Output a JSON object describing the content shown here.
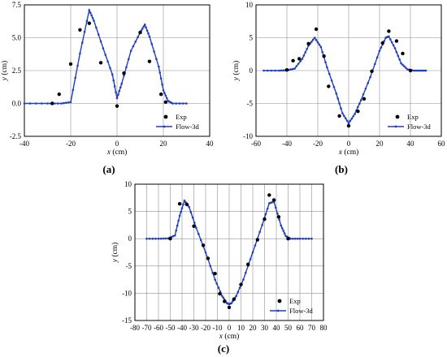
{
  "colors": {
    "model": "#1f3fbf",
    "exp": "#000000",
    "grid": "#8f8f8f",
    "axis": "#000000"
  },
  "chart_data": [
    {
      "type": "line",
      "panel_label": "(a)",
      "xlabel_var": "x",
      "xlabel_unit": " (cm)",
      "ylabel_var": "y",
      "ylabel_unit": " (cm)",
      "xlim": [
        -40,
        40
      ],
      "ylim": [
        -2.5,
        7.5
      ],
      "xticks": [
        -40,
        -20,
        0,
        20,
        40
      ],
      "yticks": [
        -2.5,
        0.0,
        2.5,
        5.0,
        7.5
      ],
      "ytick_labels": [
        "-2.5",
        "0.0",
        "2.5",
        "5.0",
        "7.5"
      ],
      "grid": true,
      "legend": {
        "position": "bottom-right",
        "entries": [
          "Exp",
          "Flow-3d"
        ]
      },
      "series": [
        {
          "name": "Exp",
          "style": "scatter",
          "x": [
            -28,
            -25,
            -20,
            -16,
            -12,
            -7,
            0,
            3,
            10,
            14,
            19,
            21
          ],
          "y": [
            0.0,
            0.7,
            3.0,
            5.6,
            6.1,
            3.1,
            -0.2,
            2.3,
            5.4,
            3.2,
            0.7,
            0.1
          ]
        },
        {
          "name": "Flow-3d",
          "style": "line",
          "x": [
            -40,
            -30,
            -24,
            -20,
            -16,
            -12,
            -10,
            -6,
            -2,
            0,
            2,
            6,
            10,
            12,
            14,
            18,
            20,
            22,
            24,
            30
          ],
          "y": [
            0,
            0,
            0,
            0.1,
            3.8,
            7.1,
            6.3,
            4.2,
            2.2,
            0.4,
            1.5,
            4.0,
            5.4,
            6.0,
            5.1,
            2.8,
            1.0,
            0.2,
            0,
            0
          ]
        }
      ]
    },
    {
      "type": "line",
      "panel_label": "(b)",
      "xlabel_var": "x",
      "xlabel_unit": " (cm)",
      "ylabel_var": "y",
      "ylabel_unit": " (cm)",
      "xlim": [
        -60,
        60
      ],
      "ylim": [
        -10,
        10
      ],
      "xticks": [
        -60,
        -40,
        -20,
        0,
        20,
        40,
        60
      ],
      "yticks": [
        -10,
        -5,
        0,
        5,
        10
      ],
      "ytick_labels": [
        "-10",
        "-5",
        "0",
        "5",
        "10"
      ],
      "grid": true,
      "legend": {
        "position": "bottom-right",
        "entries": [
          "Exp",
          "Flow-3d"
        ]
      },
      "series": [
        {
          "name": "Exp",
          "style": "scatter",
          "x": [
            -40,
            -36,
            -32,
            -26,
            -21,
            -16,
            -13,
            -6,
            0,
            6,
            10,
            15,
            22,
            26,
            31,
            35,
            40
          ],
          "y": [
            0.1,
            1.5,
            1.8,
            4.1,
            6.3,
            2.2,
            -2.4,
            -6.9,
            -8.4,
            -6.2,
            -4.3,
            -0.1,
            4.2,
            6.0,
            4.5,
            2.6,
            0.0
          ]
        },
        {
          "name": "Flow-3d",
          "style": "line",
          "x": [
            -55,
            -45,
            -40,
            -35,
            -30,
            -26,
            -22,
            -18,
            -14,
            -8,
            -4,
            0,
            4,
            8,
            14,
            20,
            24,
            26,
            30,
            34,
            38,
            42,
            46,
            50
          ],
          "y": [
            0,
            0,
            0.05,
            0.3,
            1.8,
            3.8,
            5.0,
            3.6,
            0.5,
            -3.5,
            -6.5,
            -8.0,
            -6.6,
            -4.5,
            -1.0,
            3.0,
            5.0,
            5.2,
            3.4,
            1.1,
            0.2,
            0,
            0,
            0
          ]
        }
      ]
    },
    {
      "type": "line",
      "panel_label": "(c)",
      "xlabel_var": "x",
      "xlabel_unit": " (cm)",
      "ylabel_var": "y",
      "ylabel_unit": " (cm)",
      "xlim": [
        -80,
        80
      ],
      "ylim": [
        -15,
        10
      ],
      "xticks": [
        -80,
        -70,
        -60,
        -50,
        -40,
        -30,
        -20,
        -10,
        0,
        10,
        20,
        30,
        40,
        50,
        60,
        70,
        80
      ],
      "yticks": [
        -15,
        -10,
        -5,
        0,
        5,
        10
      ],
      "ytick_labels": [
        "-15",
        "-10",
        "-5",
        "0",
        "5",
        "10"
      ],
      "grid": true,
      "legend": {
        "position": "bottom-right",
        "entries": [
          "Exp",
          "Flow-3d"
        ]
      },
      "series": [
        {
          "name": "Exp",
          "style": "scatter",
          "x": [
            -50,
            -42,
            -36,
            -30,
            -22,
            -18,
            -12,
            -8,
            -4,
            0,
            4,
            10,
            16,
            24,
            30,
            34,
            38,
            42,
            50
          ],
          "y": [
            0.0,
            6.4,
            6.3,
            2.3,
            -1.2,
            -3.6,
            -6.4,
            -10.1,
            -11.5,
            -12.6,
            -11.1,
            -8.4,
            -4.7,
            -0.2,
            3.6,
            8.0,
            7.1,
            4.0,
            0.0
          ]
        },
        {
          "name": "Flow-3d",
          "style": "line",
          "x": [
            -70,
            -60,
            -52,
            -46,
            -42,
            -38,
            -34,
            -28,
            -20,
            -12,
            -6,
            -2,
            0,
            2,
            6,
            12,
            20,
            28,
            34,
            38,
            44,
            48,
            52,
            60,
            70
          ],
          "y": [
            0,
            0,
            0.05,
            0.6,
            4.2,
            7.0,
            5.8,
            2.0,
            -2.5,
            -7.5,
            -10.5,
            -11.8,
            -12.0,
            -11.8,
            -10.5,
            -7.5,
            -2.5,
            2.5,
            6.5,
            6.8,
            2.4,
            0.5,
            0,
            0,
            0
          ]
        }
      ]
    }
  ]
}
